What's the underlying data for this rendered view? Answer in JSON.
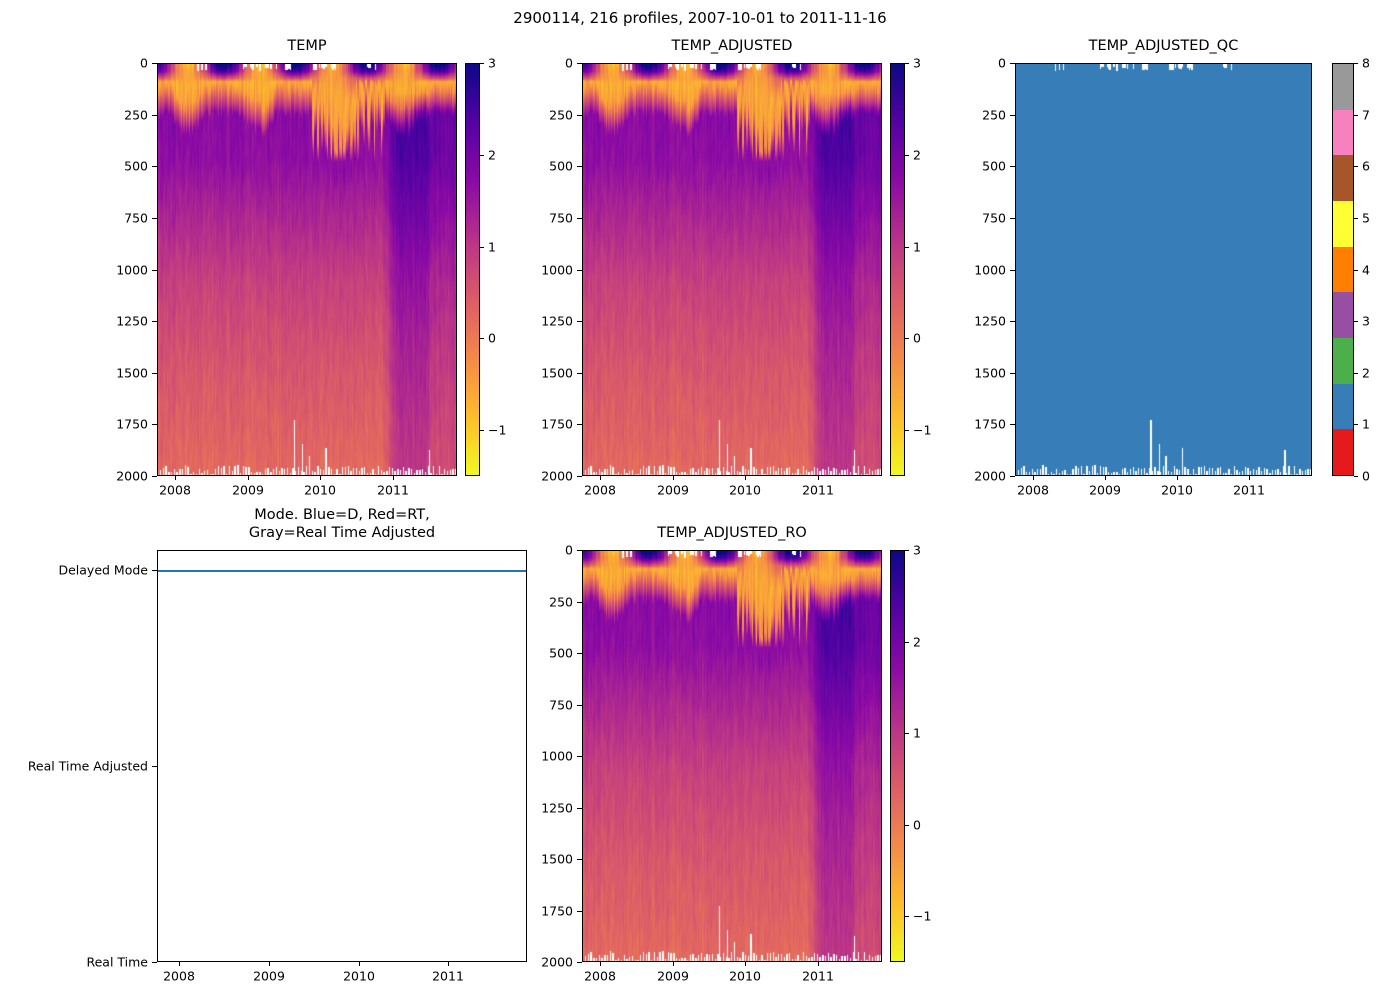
{
  "figure": {
    "title": "2900114, 216 profiles, 2007-10-01 to 2011-11-16",
    "background": "#ffffff"
  },
  "colormaps": {
    "plasma": [
      "#0d0887",
      "#5402a3",
      "#8b0aa5",
      "#b93289",
      "#db5c68",
      "#f48849",
      "#febc2b",
      "#f0f921"
    ],
    "set1": [
      "#e41a1c",
      "#377eb8",
      "#4daf4a",
      "#984ea3",
      "#ff7f00",
      "#ffff33",
      "#a65628",
      "#f781bf",
      "#999999"
    ],
    "qc_fill": "#377eb8",
    "mode_line": "#1f77b4"
  },
  "axes_common": {
    "x_tick_labels": [
      "2008",
      "2009",
      "2010",
      "2011"
    ],
    "depth_tick_labels": [
      "0",
      "250",
      "500",
      "750",
      "1000",
      "1250",
      "1500",
      "1750",
      "2000"
    ],
    "temp_colorbar_tick_labels": [
      "3",
      "2",
      "1",
      "0",
      "−1"
    ],
    "qc_colorbar_tick_labels": [
      "8",
      "7",
      "6",
      "5",
      "4",
      "3",
      "2",
      "1",
      "0"
    ]
  },
  "subplots": {
    "temp": {
      "title": "TEMP"
    },
    "temp_adjusted": {
      "title": "TEMP_ADJUSTED"
    },
    "temp_adjusted_qc": {
      "title": "TEMP_ADJUSTED_QC"
    },
    "mode": {
      "title_line1": "Mode. Blue=D, Red=RT,",
      "title_line2": "Gray=Real Time Adjusted",
      "y_tick_labels": [
        "Delayed Mode",
        "Real Time Adjusted",
        "Real Time"
      ]
    },
    "temp_adjusted_ro": {
      "title": "TEMP_ADJUSTED_RO"
    }
  },
  "chart_data": [
    {
      "type": "heatmap",
      "title": "TEMP",
      "xlabel": "",
      "ylabel": "",
      "x_range": [
        2007.75,
        2011.88
      ],
      "x_ticks": [
        2008,
        2009,
        2010,
        2011
      ],
      "y_range": [
        2000,
        0
      ],
      "y_ticks": [
        0,
        250,
        500,
        750,
        1000,
        1250,
        1500,
        1750,
        2000
      ],
      "colormap": "plasma_r",
      "vmin": -2,
      "vmax": 3,
      "colorbar_ticks": [
        3,
        2,
        1,
        0,
        -1
      ],
      "n_profiles": 216,
      "times": [
        2007.8,
        2008.2,
        2008.6,
        2009.0,
        2009.4,
        2009.8,
        2010.2,
        2010.6,
        2011.0,
        2011.4,
        2011.8
      ],
      "depths": [
        0,
        50,
        100,
        200,
        300,
        500,
        750,
        1000,
        1250,
        1500,
        1750,
        2000
      ],
      "values": [
        [
          2.5,
          -0.8,
          3.0,
          -0.5,
          0.5,
          2.8,
          -0.9,
          2.5,
          -0.5,
          1.0,
          2.8
        ],
        [
          1.2,
          -0.9,
          0.8,
          -0.7,
          -0.5,
          1.0,
          -1.2,
          0.8,
          -0.6,
          0.6,
          1.5
        ],
        [
          -0.5,
          -1.2,
          -0.8,
          -1.0,
          -0.8,
          -0.5,
          -1.4,
          -0.6,
          0.2,
          0.8,
          0.5
        ],
        [
          1.0,
          0.8,
          0.9,
          0.7,
          0.6,
          0.5,
          -0.2,
          0.3,
          1.5,
          1.8,
          1.6
        ],
        [
          1.6,
          1.5,
          1.6,
          1.4,
          1.3,
          1.2,
          0.9,
          1.0,
          1.9,
          2.0,
          1.8
        ],
        [
          1.5,
          1.4,
          1.4,
          1.3,
          1.2,
          1.1,
          1.0,
          1.0,
          1.8,
          1.8,
          1.6
        ],
        [
          1.1,
          1.0,
          1.0,
          0.9,
          0.9,
          0.8,
          0.8,
          0.7,
          1.4,
          1.4,
          1.2
        ],
        [
          0.7,
          0.7,
          0.6,
          0.6,
          0.5,
          0.5,
          0.5,
          0.4,
          1.0,
          1.0,
          0.9
        ],
        [
          0.45,
          0.4,
          0.4,
          0.4,
          0.35,
          0.3,
          0.3,
          0.3,
          0.8,
          0.7,
          0.6
        ],
        [
          0.25,
          0.2,
          0.2,
          0.2,
          0.2,
          0.15,
          0.15,
          0.1,
          0.5,
          0.5,
          0.4
        ],
        [
          0.1,
          0.1,
          0.1,
          0.05,
          0.05,
          0.05,
          0.0,
          0.0,
          0.3,
          0.3,
          0.2
        ],
        [
          0.0,
          0.0,
          -0.05,
          -0.05,
          -0.05,
          -0.1,
          -0.1,
          -0.1,
          0.2,
          0.2,
          0.1
        ]
      ]
    },
    {
      "type": "heatmap",
      "title": "TEMP_ADJUSTED",
      "xlabel": "",
      "ylabel": "",
      "x_range": [
        2007.75,
        2011.88
      ],
      "x_ticks": [
        2008,
        2009,
        2010,
        2011
      ],
      "y_range": [
        2000,
        0
      ],
      "y_ticks": [
        0,
        250,
        500,
        750,
        1000,
        1250,
        1500,
        1750,
        2000
      ],
      "colormap": "plasma_r",
      "vmin": -2,
      "vmax": 3,
      "colorbar_ticks": [
        3,
        2,
        1,
        0,
        -1
      ],
      "n_profiles": 216,
      "times": [
        2007.8,
        2008.2,
        2008.6,
        2009.0,
        2009.4,
        2009.8,
        2010.2,
        2010.6,
        2011.0,
        2011.4,
        2011.8
      ],
      "depths": [
        0,
        50,
        100,
        200,
        300,
        500,
        750,
        1000,
        1250,
        1500,
        1750,
        2000
      ],
      "values": [
        [
          2.5,
          -0.8,
          3.0,
          -0.5,
          0.5,
          2.8,
          -0.9,
          2.5,
          -0.5,
          1.0,
          2.8
        ],
        [
          1.2,
          -0.9,
          0.8,
          -0.7,
          -0.5,
          1.0,
          -1.2,
          0.8,
          -0.6,
          0.6,
          1.5
        ],
        [
          -0.5,
          -1.2,
          -0.8,
          -1.0,
          -0.8,
          -0.5,
          -1.4,
          -0.6,
          0.2,
          0.8,
          0.5
        ],
        [
          1.0,
          0.8,
          0.9,
          0.7,
          0.6,
          0.5,
          -0.2,
          0.3,
          1.5,
          1.8,
          1.6
        ],
        [
          1.6,
          1.5,
          1.6,
          1.4,
          1.3,
          1.2,
          0.9,
          1.0,
          1.9,
          2.0,
          1.8
        ],
        [
          1.5,
          1.4,
          1.4,
          1.3,
          1.2,
          1.1,
          1.0,
          1.0,
          1.8,
          1.8,
          1.6
        ],
        [
          1.1,
          1.0,
          1.0,
          0.9,
          0.9,
          0.8,
          0.8,
          0.7,
          1.4,
          1.4,
          1.2
        ],
        [
          0.7,
          0.7,
          0.6,
          0.6,
          0.5,
          0.5,
          0.5,
          0.4,
          1.0,
          1.0,
          0.9
        ],
        [
          0.45,
          0.4,
          0.4,
          0.4,
          0.35,
          0.3,
          0.3,
          0.3,
          0.8,
          0.7,
          0.6
        ],
        [
          0.25,
          0.2,
          0.2,
          0.2,
          0.2,
          0.15,
          0.15,
          0.1,
          0.5,
          0.5,
          0.4
        ],
        [
          0.1,
          0.1,
          0.1,
          0.05,
          0.05,
          0.05,
          0.0,
          0.0,
          0.3,
          0.3,
          0.2
        ],
        [
          0.0,
          0.0,
          -0.05,
          -0.05,
          -0.05,
          -0.1,
          -0.1,
          -0.1,
          0.2,
          0.2,
          0.1
        ]
      ]
    },
    {
      "type": "heatmap",
      "title": "TEMP_ADJUSTED_QC",
      "xlabel": "",
      "ylabel": "",
      "x_range": [
        2007.75,
        2011.88
      ],
      "x_ticks": [
        2008,
        2009,
        2010,
        2011
      ],
      "y_range": [
        2000,
        0
      ],
      "y_ticks": [
        0,
        250,
        500,
        750,
        1000,
        1250,
        1500,
        1750,
        2000
      ],
      "colormap": "Set1_discrete",
      "vmin": 0,
      "vmax": 8,
      "colorbar_ticks": [
        8,
        7,
        6,
        5,
        4,
        3,
        2,
        1,
        0
      ],
      "n_profiles": 216,
      "values_constant": 1,
      "legend": {
        "0": "#e41a1c",
        "1": "#377eb8",
        "2": "#4daf4a",
        "3": "#984ea3",
        "4": "#ff7f00",
        "5": "#ffff33",
        "6": "#a65628",
        "7": "#f781bf",
        "8": "#999999"
      }
    },
    {
      "type": "line",
      "title": "Mode. Blue=D, Red=RT, Gray=Real Time Adjusted",
      "x_range": [
        2007.75,
        2011.88
      ],
      "x_ticks": [
        2008,
        2009,
        2010,
        2011
      ],
      "y_categories": [
        "Real Time",
        "Real Time Adjusted",
        "Delayed Mode"
      ],
      "series": [
        {
          "name": "mode",
          "constant_value": "Delayed Mode",
          "color": "#1f77b4"
        }
      ]
    },
    {
      "type": "heatmap",
      "title": "TEMP_ADJUSTED_RO",
      "xlabel": "",
      "ylabel": "",
      "x_range": [
        2007.75,
        2011.88
      ],
      "x_ticks": [
        2008,
        2009,
        2010,
        2011
      ],
      "y_range": [
        2000,
        0
      ],
      "y_ticks": [
        0,
        250,
        500,
        750,
        1000,
        1250,
        1500,
        1750,
        2000
      ],
      "colormap": "plasma_r",
      "vmin": -2,
      "vmax": 3,
      "colorbar_ticks": [
        3,
        2,
        1,
        0,
        -1
      ],
      "n_profiles": 216,
      "times": [
        2007.8,
        2008.2,
        2008.6,
        2009.0,
        2009.4,
        2009.8,
        2010.2,
        2010.6,
        2011.0,
        2011.4,
        2011.8
      ],
      "depths": [
        0,
        50,
        100,
        200,
        300,
        500,
        750,
        1000,
        1250,
        1500,
        1750,
        2000
      ],
      "values": [
        [
          2.5,
          -0.8,
          3.0,
          -0.5,
          0.5,
          2.8,
          -0.9,
          2.5,
          -0.5,
          1.0,
          2.8
        ],
        [
          1.2,
          -0.9,
          0.8,
          -0.7,
          -0.5,
          1.0,
          -1.2,
          0.8,
          -0.6,
          0.6,
          1.5
        ],
        [
          -0.5,
          -1.2,
          -0.8,
          -1.0,
          -0.8,
          -0.5,
          -1.4,
          -0.6,
          0.2,
          0.8,
          0.5
        ],
        [
          1.0,
          0.8,
          0.9,
          0.7,
          0.6,
          0.5,
          -0.2,
          0.3,
          1.5,
          1.8,
          1.6
        ],
        [
          1.6,
          1.5,
          1.6,
          1.4,
          1.3,
          1.2,
          0.9,
          1.0,
          1.9,
          2.0,
          1.8
        ],
        [
          1.5,
          1.4,
          1.4,
          1.3,
          1.2,
          1.1,
          1.0,
          1.0,
          1.8,
          1.8,
          1.6
        ],
        [
          1.1,
          1.0,
          1.0,
          0.9,
          0.9,
          0.8,
          0.8,
          0.7,
          1.4,
          1.4,
          1.2
        ],
        [
          0.7,
          0.7,
          0.6,
          0.6,
          0.5,
          0.5,
          0.5,
          0.4,
          1.0,
          1.0,
          0.9
        ],
        [
          0.45,
          0.4,
          0.4,
          0.4,
          0.35,
          0.3,
          0.3,
          0.3,
          0.8,
          0.7,
          0.6
        ],
        [
          0.25,
          0.2,
          0.2,
          0.2,
          0.2,
          0.15,
          0.15,
          0.1,
          0.5,
          0.5,
          0.4
        ],
        [
          0.1,
          0.1,
          0.1,
          0.05,
          0.05,
          0.05,
          0.0,
          0.0,
          0.3,
          0.3,
          0.2
        ],
        [
          0.0,
          0.0,
          -0.05,
          -0.05,
          -0.05,
          -0.1,
          -0.1,
          -0.1,
          0.2,
          0.2,
          0.1
        ]
      ]
    }
  ]
}
